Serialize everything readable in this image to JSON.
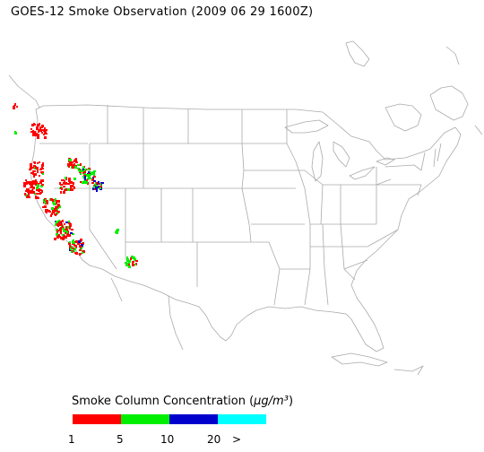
{
  "map": {
    "title": "GOES-12 Smoke Observation (2009 06 29  1600Z)",
    "region": "contiguous United States",
    "outline_color": "#aaaaaa",
    "smoke_observed_over": [
      "California",
      "Oregon",
      "Nevada",
      "Idaho",
      "Arizona"
    ]
  },
  "legend": {
    "title_prefix": "Smoke Column Concentration (",
    "title_unit": "μg/m³",
    "title_suffix": ")",
    "categories": [
      {
        "label": "1",
        "color": "#ff0000"
      },
      {
        "label": "5",
        "color": "#00ee00"
      },
      {
        "label": "10",
        "color": "#0000cc"
      },
      {
        "label": "20",
        "color": "#00ffff"
      }
    ],
    "overflow_label": ">"
  }
}
